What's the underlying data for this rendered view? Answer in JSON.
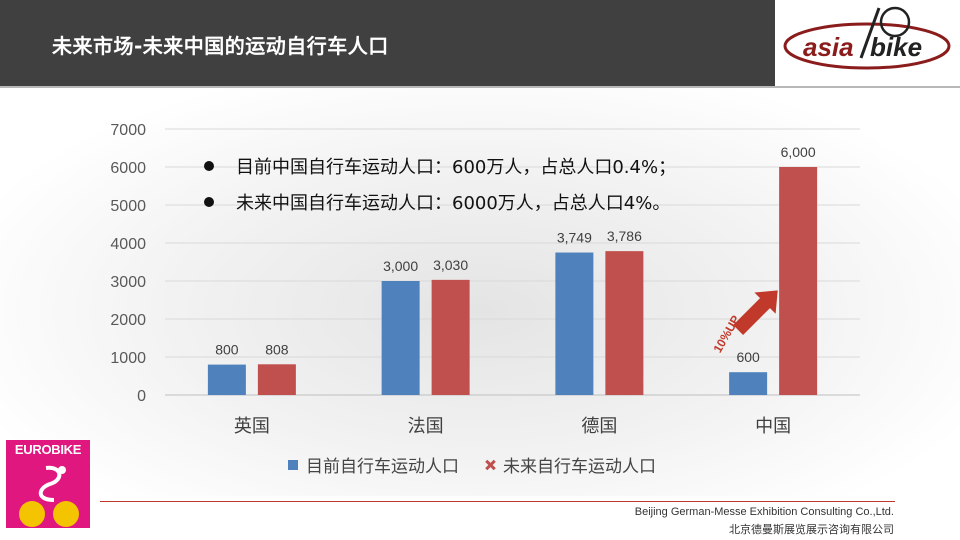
{
  "header": {
    "title": "未来市场-未来中国的运动自行车人口",
    "logo_text_left": "asia",
    "logo_text_right": "bike"
  },
  "bullets": [
    "目前中国自行车运动人口：600万人，占总人口0.4%；",
    "未来中国自行车运动人口：6000万人，占总人口4%。"
  ],
  "chart_data": {
    "type": "bar",
    "categories": [
      "英国",
      "法国",
      "德国",
      "中国"
    ],
    "series": [
      {
        "name": "目前自行车运动人口",
        "values": [
          800,
          3000,
          3749,
          600
        ],
        "labels": [
          "800",
          "3,000",
          "3,749",
          "600"
        ],
        "color": "#4f81bd"
      },
      {
        "name": "未来自行车运动人口",
        "values": [
          808,
          3030,
          3786,
          6000
        ],
        "labels": [
          "808",
          "3,030",
          "3,786",
          "6,000"
        ],
        "color": "#c0504d"
      }
    ],
    "ylim": [
      0,
      7000
    ],
    "yticks": [
      0,
      1000,
      2000,
      3000,
      4000,
      5000,
      6000,
      7000
    ],
    "grid": true,
    "legend_position": "bottom",
    "annotation": "10%UP"
  },
  "branding": {
    "eurobike_label": "EUROBIKE",
    "footer_en": "Beijing German-Messe Exhibition Consulting Co.,Ltd.",
    "footer_cn": "北京德曼斯展览展示咨询有限公司"
  },
  "colors": {
    "title_bar": "#404040",
    "accent_red": "#c0392b",
    "eurobike_pink": "#e0177e"
  }
}
